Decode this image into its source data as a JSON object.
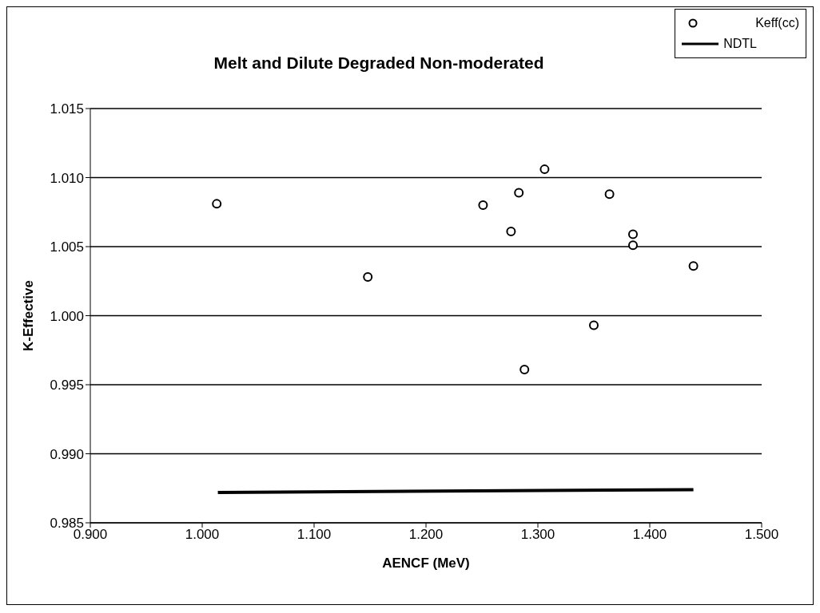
{
  "chart_data": {
    "type": "scatter",
    "title": "Melt and Dilute Degraded Non-moderated",
    "xlabel": "AENCF (MeV)",
    "ylabel": "K-Effective",
    "xlim": [
      0.9,
      1.5
    ],
    "xticks": [
      {
        "value": 0.9,
        "label": "0.900"
      },
      {
        "value": 1.0,
        "label": "1.000"
      },
      {
        "value": 1.1,
        "label": "1.100"
      },
      {
        "value": 1.2,
        "label": "1.200"
      },
      {
        "value": 1.3,
        "label": "1.300"
      },
      {
        "value": 1.4,
        "label": "1.400"
      },
      {
        "value": 1.5,
        "label": "1.500"
      }
    ],
    "ylim": [
      0.985,
      1.015
    ],
    "yticks": [
      0.985,
      {
        "value": 0.99,
        "label": "0.990"
      },
      0.995,
      {
        "value": 1.0,
        "label": "1.000"
      },
      1.005,
      {
        "value": 1.01,
        "label": "1.010"
      },
      1.015
    ],
    "grid": "y",
    "legend": "top right",
    "series": [
      {
        "name": "Keff(cc)",
        "marker": "circle",
        "color": "#000000",
        "x": [
          1.013,
          1.148,
          1.251,
          1.276,
          1.283,
          1.288,
          1.306,
          1.35,
          1.364,
          1.385,
          1.385,
          1.439
        ],
        "values": [
          1.0081,
          1.0028,
          1.008,
          1.0061,
          1.0089,
          0.9961,
          1.0106,
          0.9993,
          1.0088,
          1.0059,
          1.0051,
          1.0036
        ]
      },
      {
        "name": "NDTL",
        "type": "line",
        "marker": "none",
        "color": "#000000",
        "x": [
          1.014,
          1.439
        ],
        "values": [
          0.9872,
          0.9874
        ]
      }
    ]
  }
}
